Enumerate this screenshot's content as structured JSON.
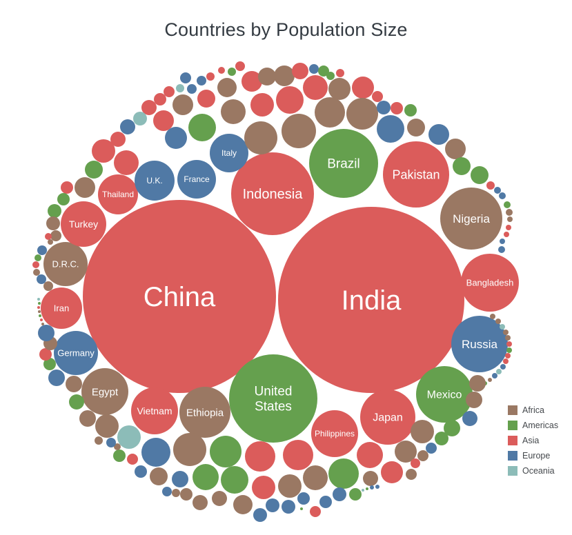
{
  "chart_data": {
    "type": "bubble-pack",
    "title": "Countries by Population Size",
    "size_encoding": "circle area ~ country population",
    "legend_position": "bottom-right",
    "background_color": "#ffffff",
    "title_color": "#343b42",
    "label_text_color": "#ffffff",
    "legend_items": [
      {
        "code": "AF",
        "label": "Africa",
        "color": "#9a7863"
      },
      {
        "code": "AM",
        "label": "Americas",
        "color": "#65a04e"
      },
      {
        "code": "AS",
        "label": "Asia",
        "color": "#db5c5b"
      },
      {
        "code": "EU",
        "label": "Europe",
        "color": "#5079a5"
      },
      {
        "code": "OC",
        "label": "Oceania",
        "color": "#8cbcb8"
      }
    ],
    "bubble_fields": [
      "x_px",
      "y_px",
      "radius_px",
      "continent_code",
      "label",
      "label_font_px",
      "label_lines"
    ],
    "bubbles": [
      [
        260,
        430,
        140,
        "AS",
        "China",
        40
      ],
      [
        538,
        435,
        135,
        "AS",
        "India",
        40
      ],
      [
        395,
        281,
        60,
        "AS",
        "Indonesia",
        20
      ],
      [
        396,
        578,
        64,
        "AM",
        "United States",
        19,
        [
          "United",
          "States"
        ]
      ],
      [
        498,
        237,
        50,
        "AM",
        "Brazil",
        19
      ],
      [
        603,
        253,
        48,
        "AS",
        "Pakistan",
        18
      ],
      [
        683,
        317,
        45,
        "AF",
        "Nigeria",
        17
      ],
      [
        710,
        410,
        42,
        "AS",
        "Bangladesh",
        13
      ],
      [
        695,
        499,
        41,
        "EU",
        "Russia",
        17
      ],
      [
        644,
        572,
        41,
        "AM",
        "Mexico",
        16
      ],
      [
        562,
        605,
        40,
        "AS",
        "Japan",
        16
      ],
      [
        485,
        629,
        34,
        "AS",
        "Philippines",
        12
      ],
      [
        297,
        598,
        37,
        "AF",
        "Ethiopia",
        15
      ],
      [
        224,
        596,
        34,
        "AS",
        "Vietnam",
        14
      ],
      [
        152,
        568,
        34,
        "AF",
        "Egypt",
        15
      ],
      [
        110,
        512,
        32,
        "EU",
        "Germany",
        13
      ],
      [
        89,
        447,
        30,
        "AS",
        "Iran",
        13
      ],
      [
        95,
        383,
        32,
        "AF",
        "D.R.C.",
        13
      ],
      [
        121,
        325,
        33,
        "AS",
        "Turkey",
        14
      ],
      [
        171,
        282,
        29,
        "AS",
        "Thailand",
        12
      ],
      [
        224,
        262,
        29,
        "EU",
        "U.K.",
        12
      ],
      [
        285,
        260,
        28,
        "EU",
        "France",
        12
      ],
      [
        332,
        222,
        28,
        "EU",
        "Italy",
        12
      ],
      [
        216,
        156,
        11,
        "AS"
      ],
      [
        203,
        172,
        10,
        "OC"
      ],
      [
        185,
        184,
        11,
        "EU"
      ],
      [
        171,
        202,
        11,
        "AS"
      ],
      [
        150,
        219,
        17,
        "AS"
      ],
      [
        183,
        236,
        18,
        "AS"
      ],
      [
        136,
        246,
        13,
        "AM"
      ],
      [
        123,
        272,
        15,
        "AF"
      ],
      [
        97,
        272,
        9,
        "AS"
      ],
      [
        92,
        289,
        9,
        "AM"
      ],
      [
        79,
        306,
        10,
        "AM"
      ],
      [
        77,
        324,
        10,
        "AF"
      ],
      [
        81,
        342,
        8,
        "AF"
      ],
      [
        70,
        343,
        5,
        "AS"
      ],
      [
        73,
        351,
        4,
        "AF"
      ],
      [
        232,
        144,
        9,
        "AS"
      ],
      [
        245,
        133,
        8,
        "AS"
      ],
      [
        261,
        128,
        6,
        "OC"
      ],
      [
        269,
        113,
        8,
        "EU"
      ],
      [
        278,
        129,
        7,
        "EU"
      ],
      [
        292,
        117,
        7,
        "EU"
      ],
      [
        305,
        111,
        6,
        "AS"
      ],
      [
        321,
        102,
        5,
        "AS"
      ],
      [
        336,
        104,
        6,
        "AM"
      ],
      [
        348,
        96,
        7,
        "AS"
      ],
      [
        265,
        152,
        15,
        "AF"
      ],
      [
        237,
        175,
        15,
        "AS"
      ],
      [
        299,
        143,
        13,
        "AS"
      ],
      [
        329,
        127,
        14,
        "AF"
      ],
      [
        365,
        118,
        15,
        "AS"
      ],
      [
        387,
        111,
        13,
        "AF"
      ],
      [
        338,
        162,
        18,
        "AF"
      ],
      [
        293,
        185,
        20,
        "AM"
      ],
      [
        380,
        152,
        17,
        "AS"
      ],
      [
        378,
        200,
        24,
        "AF"
      ],
      [
        255,
        200,
        16,
        "EU"
      ],
      [
        412,
        110,
        15,
        "AF"
      ],
      [
        435,
        103,
        12,
        "AS"
      ],
      [
        455,
        100,
        7,
        "EU"
      ],
      [
        469,
        103,
        8,
        "AM"
      ],
      [
        479,
        110,
        6,
        "AM"
      ],
      [
        493,
        106,
        6,
        "AS"
      ],
      [
        457,
        127,
        18,
        "AS"
      ],
      [
        492,
        129,
        16,
        "AF"
      ],
      [
        526,
        127,
        16,
        "AS"
      ],
      [
        547,
        140,
        8,
        "AS"
      ],
      [
        420,
        145,
        20,
        "AS"
      ],
      [
        433,
        190,
        25,
        "AF"
      ],
      [
        478,
        163,
        22,
        "AF"
      ],
      [
        525,
        165,
        23,
        "AF"
      ],
      [
        556,
        156,
        10,
        "EU"
      ],
      [
        575,
        157,
        9,
        "AS"
      ],
      [
        595,
        160,
        9,
        "AM"
      ],
      [
        566,
        187,
        20,
        "EU"
      ],
      [
        603,
        185,
        13,
        "AF"
      ],
      [
        636,
        195,
        15,
        "EU"
      ],
      [
        660,
        216,
        15,
        "AF"
      ],
      [
        669,
        241,
        13,
        "AM"
      ],
      [
        695,
        254,
        13,
        "AM"
      ],
      [
        711,
        269,
        6,
        "AS"
      ],
      [
        721,
        276,
        5,
        "EU"
      ],
      [
        728,
        284,
        5,
        "EU"
      ],
      [
        735,
        297,
        5,
        "AM"
      ],
      [
        738,
        308,
        5,
        "AF"
      ],
      [
        739,
        318,
        4,
        "AF"
      ],
      [
        737,
        330,
        4,
        "AS"
      ],
      [
        734,
        340,
        4,
        "AS"
      ],
      [
        728,
        350,
        4,
        "EU"
      ],
      [
        727,
        362,
        5,
        "EU"
      ],
      [
        714,
        459,
        4,
        "AF"
      ],
      [
        722,
        466,
        4,
        "AF"
      ],
      [
        728,
        474,
        4,
        "OC"
      ],
      [
        733,
        482,
        4,
        "AF"
      ],
      [
        736,
        490,
        4,
        "AF"
      ],
      [
        738,
        499,
        4,
        "AS"
      ],
      [
        738,
        508,
        4,
        "AM"
      ],
      [
        736,
        516,
        4,
        "AS"
      ],
      [
        733,
        524,
        4,
        "AS"
      ],
      [
        729,
        532,
        4,
        "EU"
      ],
      [
        723,
        539,
        4,
        "OC"
      ],
      [
        717,
        545,
        4,
        "EU"
      ],
      [
        710,
        551,
        3,
        "AF"
      ],
      [
        703,
        556,
        3,
        "AM"
      ],
      [
        692,
        556,
        12,
        "AF"
      ],
      [
        687,
        580,
        12,
        "AF"
      ],
      [
        681,
        607,
        11,
        "EU"
      ],
      [
        655,
        621,
        12,
        "AM"
      ],
      [
        640,
        636,
        10,
        "AM"
      ],
      [
        625,
        650,
        8,
        "EU"
      ],
      [
        612,
        626,
        17,
        "AF"
      ],
      [
        588,
        655,
        16,
        "AF"
      ],
      [
        613,
        661,
        8,
        "AF"
      ],
      [
        602,
        672,
        7,
        "AS"
      ],
      [
        596,
        688,
        8,
        "AF"
      ],
      [
        568,
        685,
        16,
        "AS"
      ],
      [
        536,
        660,
        19,
        "AS"
      ],
      [
        537,
        694,
        11,
        "AF"
      ],
      [
        498,
        687,
        22,
        "AM"
      ],
      [
        492,
        717,
        10,
        "EU"
      ],
      [
        515,
        717,
        9,
        "AM"
      ],
      [
        526,
        711,
        2,
        "OC"
      ],
      [
        532,
        709,
        2,
        "AM"
      ],
      [
        539,
        707,
        3,
        "EU"
      ],
      [
        547,
        706,
        3,
        "EU"
      ],
      [
        457,
        693,
        18,
        "AF"
      ],
      [
        457,
        742,
        8,
        "AS"
      ],
      [
        472,
        728,
        9,
        "EU"
      ],
      [
        440,
        723,
        9,
        "EU"
      ],
      [
        437,
        738,
        2,
        "AM"
      ],
      [
        418,
        735,
        10,
        "EU"
      ],
      [
        395,
        733,
        10,
        "EU"
      ],
      [
        377,
        747,
        10,
        "EU"
      ],
      [
        420,
        705,
        17,
        "AF"
      ],
      [
        382,
        707,
        17,
        "AS"
      ],
      [
        352,
        732,
        14,
        "AF"
      ],
      [
        318,
        723,
        11,
        "AF"
      ],
      [
        340,
        696,
        20,
        "AM"
      ],
      [
        298,
        692,
        19,
        "AM"
      ],
      [
        327,
        655,
        23,
        "AM"
      ],
      [
        377,
        662,
        22,
        "AS"
      ],
      [
        432,
        660,
        22,
        "AS"
      ],
      [
        290,
        729,
        11,
        "AF"
      ],
      [
        270,
        717,
        9,
        "AF"
      ],
      [
        255,
        715,
        6,
        "AF"
      ],
      [
        242,
        713,
        7,
        "EU"
      ],
      [
        261,
        695,
        12,
        "EU"
      ],
      [
        230,
        691,
        13,
        "AF"
      ],
      [
        226,
        656,
        21,
        "EU"
      ],
      [
        275,
        652,
        24,
        "AF"
      ],
      [
        204,
        684,
        9,
        "EU"
      ],
      [
        192,
        666,
        8,
        "AS"
      ],
      [
        173,
        661,
        9,
        "AM"
      ],
      [
        187,
        634,
        17,
        "OC"
      ],
      [
        170,
        648,
        5,
        "AF"
      ],
      [
        161,
        642,
        7,
        "EU"
      ],
      [
        143,
        639,
        6,
        "AF"
      ],
      [
        155,
        618,
        17,
        "AF"
      ],
      [
        127,
        607,
        12,
        "AF"
      ],
      [
        111,
        583,
        11,
        "AM"
      ],
      [
        107,
        557,
        12,
        "AF"
      ],
      [
        82,
        548,
        12,
        "EU"
      ],
      [
        72,
        528,
        9,
        "AM"
      ],
      [
        66,
        514,
        9,
        "AS"
      ],
      [
        73,
        498,
        10,
        "AF"
      ],
      [
        67,
        483,
        12,
        "EU"
      ],
      [
        61,
        363,
        7,
        "EU"
      ],
      [
        55,
        374,
        5,
        "AM"
      ],
      [
        52,
        384,
        5,
        "AS"
      ],
      [
        53,
        395,
        5,
        "AF"
      ],
      [
        60,
        405,
        7,
        "EU"
      ],
      [
        70,
        415,
        7,
        "AF"
      ],
      [
        56,
        434,
        2,
        "OC"
      ],
      [
        57,
        440,
        2,
        "AM"
      ],
      [
        56,
        446,
        2,
        "AS"
      ],
      [
        57,
        452,
        2,
        "AF"
      ],
      [
        58,
        458,
        2,
        "AM"
      ],
      [
        60,
        464,
        2,
        "AS"
      ],
      [
        62,
        470,
        2,
        "AF"
      ]
    ]
  }
}
